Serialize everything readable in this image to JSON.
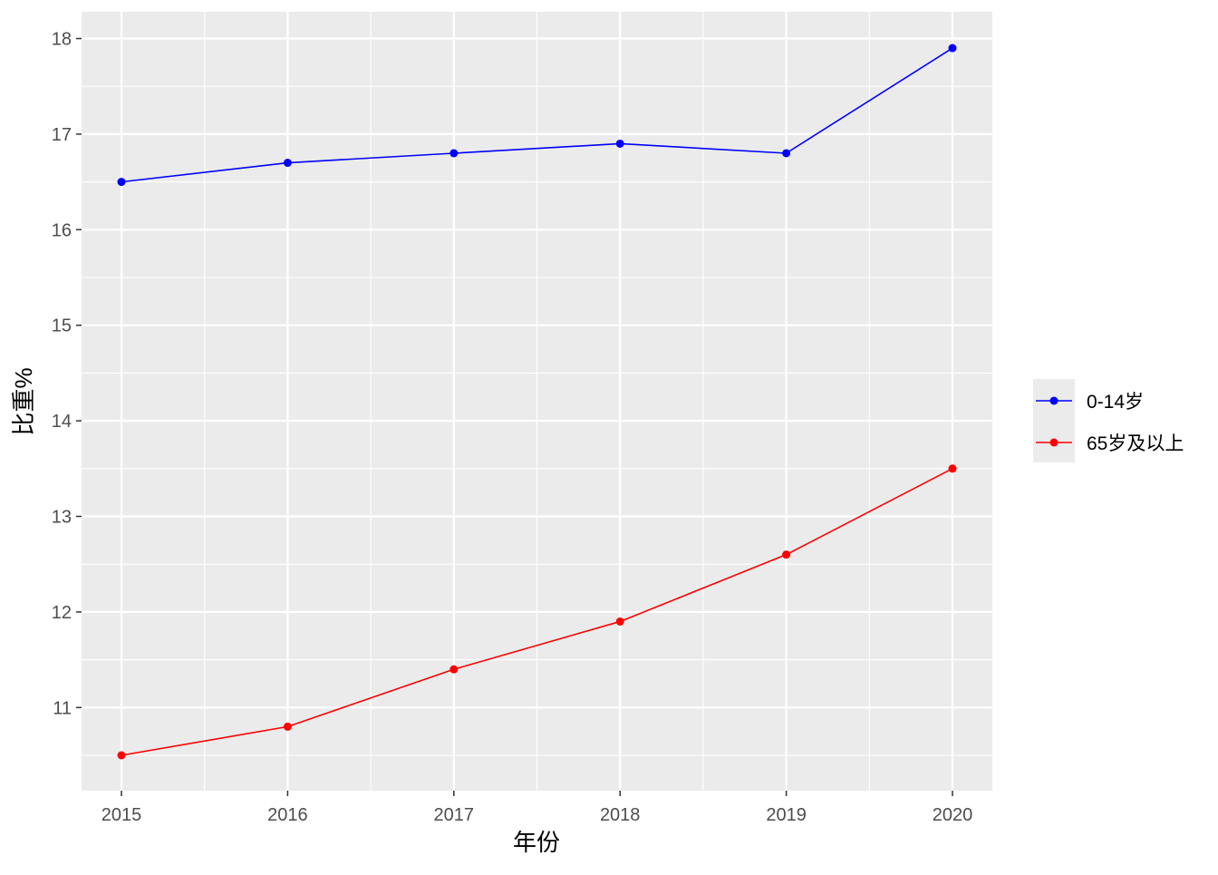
{
  "chart_data": {
    "type": "line",
    "title": "",
    "xlabel": "年份",
    "ylabel": "比重%",
    "x": [
      2015,
      2016,
      2017,
      2018,
      2019,
      2020
    ],
    "x_tick_labels": [
      "2015",
      "2016",
      "2017",
      "2018",
      "2019",
      "2020"
    ],
    "y_ticks": [
      11,
      12,
      13,
      14,
      15,
      16,
      17,
      18
    ],
    "y_tick_labels": [
      "11",
      "12",
      "13",
      "14",
      "15",
      "16",
      "17",
      "18"
    ],
    "xlim": [
      2014.76,
      2020.24
    ],
    "ylim": [
      10.13,
      18.28
    ],
    "grid": true,
    "legend_position": "right",
    "series": [
      {
        "name": "0-14岁",
        "color": "#0000FF",
        "values": [
          16.5,
          16.7,
          16.8,
          16.9,
          16.8,
          17.9
        ]
      },
      {
        "name": "65岁及以上",
        "color": "#FF0000",
        "values": [
          10.5,
          10.8,
          11.4,
          11.9,
          12.6,
          13.5
        ]
      }
    ],
    "panel_background": "#EBEBEB",
    "grid_color": "#FFFFFF"
  }
}
